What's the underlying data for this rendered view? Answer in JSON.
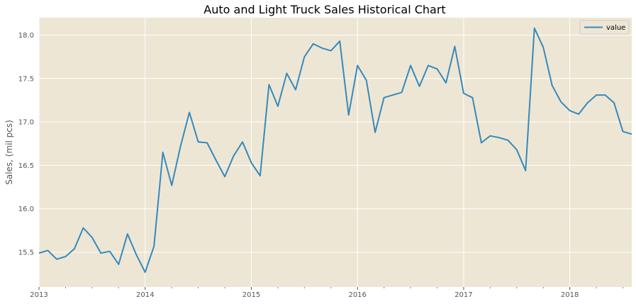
{
  "chart_data": {
    "type": "line",
    "title": "Auto and Light Truck Sales Historical Chart",
    "xlabel": "",
    "ylabel": "Sales, (mil pcs)",
    "x_tick_labels": [
      "2013",
      "2014",
      "2015",
      "2016",
      "2017",
      "2018"
    ],
    "y_tick_labels": [
      "15.5",
      "16.0",
      "16.5",
      "17.0",
      "17.5",
      "18.0"
    ],
    "ylim": [
      15.1,
      18.2
    ],
    "xlim": [
      "2013-01",
      "2018-08"
    ],
    "grid": true,
    "legend_position": "top-right",
    "x": [
      "2013-01",
      "2013-02",
      "2013-03",
      "2013-04",
      "2013-05",
      "2013-06",
      "2013-07",
      "2013-08",
      "2013-09",
      "2013-10",
      "2013-11",
      "2013-12",
      "2014-01",
      "2014-02",
      "2014-03",
      "2014-04",
      "2014-05",
      "2014-06",
      "2014-07",
      "2014-08",
      "2014-09",
      "2014-10",
      "2014-11",
      "2014-12",
      "2015-01",
      "2015-02",
      "2015-03",
      "2015-04",
      "2015-05",
      "2015-06",
      "2015-07",
      "2015-08",
      "2015-09",
      "2015-10",
      "2015-11",
      "2015-12",
      "2016-01",
      "2016-02",
      "2016-03",
      "2016-04",
      "2016-05",
      "2016-06",
      "2016-07",
      "2016-08",
      "2016-09",
      "2016-10",
      "2016-11",
      "2016-12",
      "2017-01",
      "2017-02",
      "2017-03",
      "2017-04",
      "2017-05",
      "2017-06",
      "2017-07",
      "2017-08",
      "2017-09",
      "2017-10",
      "2017-11",
      "2017-12",
      "2018-01",
      "2018-02",
      "2018-03",
      "2018-04",
      "2018-05",
      "2018-06",
      "2018-07",
      "2018-08"
    ],
    "series": [
      {
        "name": "value",
        "color": "#348ABD",
        "values": [
          15.49,
          15.52,
          15.42,
          15.45,
          15.54,
          15.78,
          15.67,
          15.49,
          15.51,
          15.36,
          15.71,
          15.47,
          15.27,
          15.57,
          16.65,
          16.27,
          16.72,
          17.11,
          16.77,
          16.76,
          16.56,
          16.37,
          16.61,
          16.77,
          16.53,
          16.38,
          17.43,
          17.18,
          17.56,
          17.37,
          17.75,
          17.9,
          17.85,
          17.82,
          17.93,
          17.08,
          17.65,
          17.48,
          16.88,
          17.28,
          17.31,
          17.34,
          17.65,
          17.41,
          17.65,
          17.61,
          17.45,
          17.87,
          17.33,
          17.28,
          16.76,
          16.84,
          16.82,
          16.79,
          16.68,
          16.44,
          18.08,
          17.86,
          17.42,
          17.23,
          17.13,
          17.09,
          17.22,
          17.31,
          17.31,
          17.22,
          16.89,
          16.86
        ]
      }
    ]
  }
}
